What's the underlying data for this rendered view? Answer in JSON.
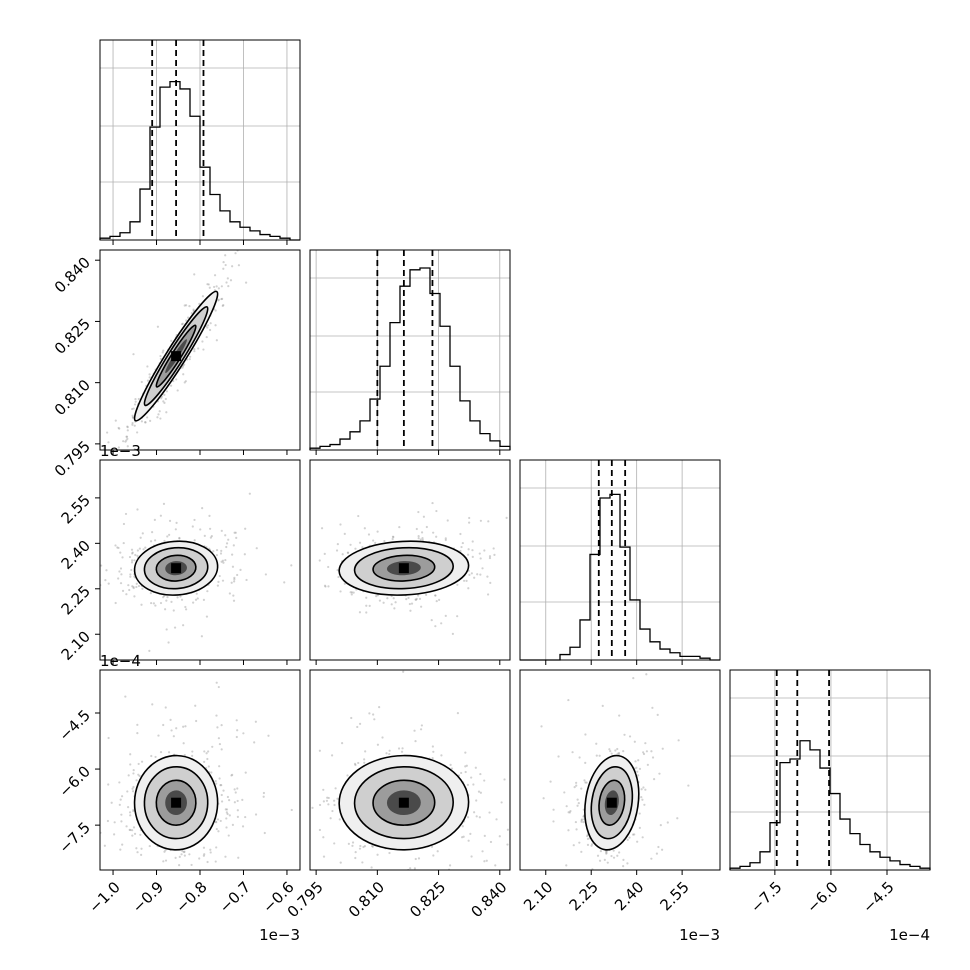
{
  "chart_data": {
    "type": "corner",
    "n_params": 4,
    "grid": true,
    "params": [
      {
        "range": [
          -1.03,
          -0.57
        ],
        "ticks": [
          -1.0,
          -0.9,
          -0.8,
          -0.7,
          -0.6
        ],
        "tick_labels": [
          "−1.0",
          "−0.9",
          "−0.8",
          "−0.7",
          "−0.6"
        ],
        "offset": "1e−3",
        "quantiles": [
          -0.91,
          -0.855,
          -0.792
        ]
      },
      {
        "range": [
          0.7935,
          0.8425
        ],
        "ticks": [
          0.795,
          0.81,
          0.825,
          0.84
        ],
        "tick_labels": [
          "0.795",
          "0.810",
          "0.825",
          "0.840"
        ],
        "offset": "",
        "quantiles": [
          0.81,
          0.8165,
          0.8235
        ]
      },
      {
        "range": [
          2.015,
          2.675
        ],
        "ticks": [
          2.1,
          2.25,
          2.4,
          2.55
        ],
        "tick_labels": [
          "2.10",
          "2.25",
          "2.40",
          "2.55"
        ],
        "offset": "1e−3",
        "quantiles": [
          2.275,
          2.318,
          2.362
        ]
      },
      {
        "range": [
          -8.7,
          -3.35
        ],
        "ticks": [
          -7.5,
          -6.0,
          -4.5
        ],
        "tick_labels": [
          "−7.5",
          "−6.0",
          "−4.5"
        ],
        "offset": "1e−4",
        "quantiles": [
          -7.45,
          -6.9,
          -6.05
        ]
      }
    ],
    "row_offsets": [
      "",
      "1e−3",
      "1e−4"
    ],
    "hist_values": [
      [
        1,
        2,
        4,
        10,
        28,
        62,
        84,
        87,
        83,
        68,
        40,
        25,
        16,
        10,
        7,
        5,
        3,
        2,
        1,
        0
      ],
      [
        1,
        2,
        3,
        6,
        10,
        16,
        28,
        46,
        70,
        90,
        99,
        100,
        86,
        68,
        46,
        27,
        16,
        9,
        5,
        2
      ],
      [
        0,
        0,
        0,
        0,
        3,
        7,
        22,
        58,
        89,
        91,
        62,
        33,
        17,
        10,
        6,
        4,
        2,
        2,
        1,
        0
      ],
      [
        1,
        2,
        4,
        10,
        26,
        59,
        61,
        71,
        66,
        56,
        42,
        28,
        20,
        14,
        10,
        7,
        5,
        3,
        2,
        1
      ]
    ],
    "cov": [
      [
        0.00207,
        0.00033,
        0.00013,
        0.00021
      ],
      [
        0.00033,
        5.7e-05,
        3e-05,
        5e-05
      ],
      [
        0.00013,
        3e-05,
        0.00179,
        0.0045
      ],
      [
        0.00021,
        5e-05,
        0.0045,
        0.36
      ]
    ],
    "mean": [
      -0.855,
      0.8165,
      2.318,
      -6.9
    ]
  }
}
